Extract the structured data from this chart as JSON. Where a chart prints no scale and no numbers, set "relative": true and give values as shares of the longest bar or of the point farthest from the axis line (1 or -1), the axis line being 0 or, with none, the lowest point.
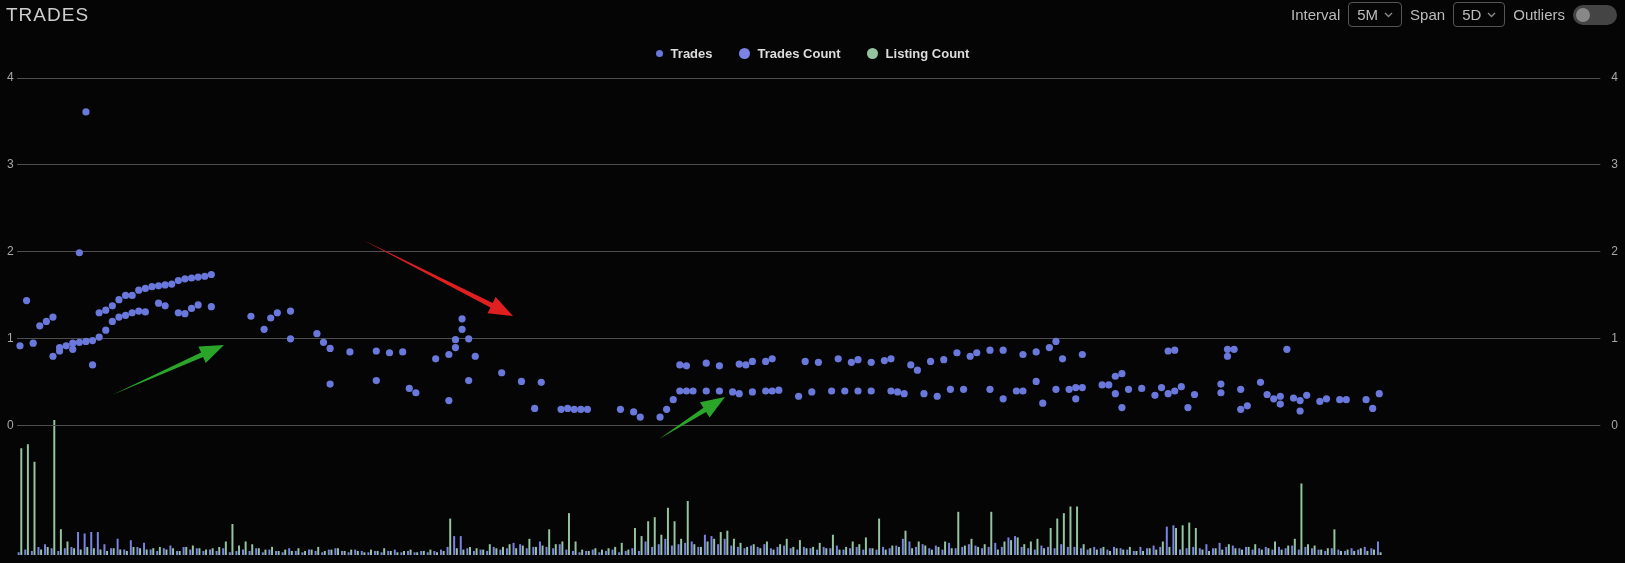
{
  "chart_data": [
    {
      "type": "scatter",
      "title": "TRADES",
      "annotations": [
        "Interval",
        "5M",
        "Span",
        "5D",
        "Outliers"
      ],
      "categories": [
        null,
        null,
        null,
        null,
        null,
        null,
        null,
        null,
        null,
        null,
        null,
        null,
        null,
        null,
        null,
        null,
        null,
        null,
        null,
        null,
        null,
        null,
        null,
        null,
        null,
        null,
        null,
        null,
        null,
        null,
        null,
        null,
        null,
        null,
        null,
        null,
        null,
        null,
        null,
        null,
        null,
        null,
        null,
        null,
        null,
        null,
        null,
        null,
        null,
        null,
        null,
        null,
        null,
        null,
        null,
        null,
        null,
        null,
        null,
        null,
        null,
        null,
        null,
        null,
        null,
        null,
        null,
        null,
        null,
        null,
        null,
        null,
        null,
        null,
        null,
        null,
        null,
        null,
        null,
        null,
        null,
        null,
        null,
        null,
        null,
        null,
        null,
        null,
        null,
        null,
        null,
        null,
        null,
        null,
        null,
        null,
        null,
        null,
        null,
        null,
        null,
        null,
        null,
        null,
        null,
        null,
        null,
        null,
        null,
        null,
        null,
        null,
        null,
        null,
        null,
        null,
        null,
        null,
        null,
        null,
        null,
        null,
        null,
        null,
        null,
        null,
        null,
        null,
        null,
        null,
        null,
        null,
        null,
        null,
        null,
        null,
        null,
        null,
        null,
        null,
        null,
        null,
        null,
        null,
        null,
        null,
        null,
        null,
        null,
        null,
        null,
        null,
        null,
        null,
        null,
        null,
        null,
        null,
        null,
        null,
        null,
        null,
        null,
        null,
        null,
        null,
        null,
        null,
        null,
        null,
        null,
        null,
        null,
        null,
        null,
        null,
        null,
        null,
        null,
        null,
        null,
        null,
        null,
        null,
        null,
        null,
        null,
        null,
        null,
        null,
        null,
        null,
        null,
        null,
        null,
        null,
        null,
        null,
        null,
        null,
        null,
        null,
        null,
        null,
        null,
        null,
        null,
        null,
        null,
        null,
        null,
        null,
        null,
        null,
        null,
        null,
        null,
        null,
        null,
        null,
        null,
        null,
        null,
        null,
        null,
        null,
        null,
        null,
        null,
        null,
        null,
        null,
        null,
        null,
        null,
        null,
        null,
        null,
        null,
        null
      ],
      "series": [
        {
          "name": "Trades",
          "color": "#6a78dc",
          "values": [
            0.92,
            1.44,
            0.95,
            1.15,
            1.2,
            0.8,
            0.86,
            0.92,
            0.95,
            0.96,
            3.61,
            0.7,
            1.3,
            1.33,
            1.38,
            1.45,
            1.5,
            1.5,
            1.56,
            1.58,
            1.6,
            1.61,
            1.62,
            1.63,
            1.67,
            1.69,
            1.7,
            1.71,
            1.72,
            1.74,
            null,
            null,
            null,
            null,
            null,
            1.26,
            null,
            1.11,
            1.24,
            1.3,
            null,
            1.0,
            null,
            null,
            null,
            1.06,
            0.96,
            0.89,
            null,
            null,
            0.85,
            null,
            null,
            null,
            0.86,
            null,
            0.84,
            null,
            0.85,
            0.43,
            0.38,
            null,
            null,
            0.77,
            null,
            0.29,
            0.9,
            1.23,
            1.0,
            0.8,
            null,
            null,
            null,
            0.61,
            null,
            null,
            0.51,
            null,
            0.2,
            0.5,
            null,
            null,
            0.19,
            0.2,
            0.19,
            0.19,
            0.19,
            null,
            null,
            null,
            null,
            0.19,
            null,
            0.16,
            0.1,
            null,
            null,
            0.1,
            0.19,
            0.3,
            0.4,
            0.4,
            0.4,
            null,
            0.72,
            null,
            0.69,
            null,
            0.39,
            0.71,
            0.7,
            0.39,
            null,
            0.74,
            0.4,
            0.41,
            null,
            null,
            0.34,
            0.74,
            0.39,
            0.73,
            null,
            0.4,
            0.77,
            0.4,
            0.73,
            0.4,
            null,
            0.4,
            null,
            0.75,
            0.4,
            0.39,
            0.37,
            0.7,
            0.64,
            0.37,
            0.74,
            0.34,
            0.76,
            0.42,
            0.84,
            0.42,
            0.8,
            0.84,
            null,
            0.42,
            null,
            0.87,
            null,
            0.4,
            0.82,
            null,
            0.51,
            0.26,
            0.9,
            0.97,
            0.77,
            0.42,
            0.44,
            0.82,
            null,
            null,
            0.47,
            0.47,
            0.37,
            0.6,
            0.42,
            null,
            0.43,
            null,
            0.35,
            0.44,
            0.86,
            0.87,
            0.45,
            0.21,
            0.36,
            null,
            null,
            null,
            0.38,
            0.8,
            0.88,
            0.19,
            0.23,
            null,
            0.5,
            0.36,
            0.31,
            0.34,
            0.88,
            0.32,
            0.17,
            0.35,
            null,
            0.28,
            0.31,
            null,
            0.3,
            0.3,
            null,
            null,
            0.3,
            0.2,
            0.37,
            null,
            null,
            null,
            null,
            null,
            null,
            null,
            null,
            null,
            null,
            null,
            null,
            null,
            null,
            null,
            null,
            null,
            null,
            null,
            null,
            null,
            null,
            null,
            null,
            null,
            null,
            null,
            null,
            null,
            null,
            null,
            null,
            null
          ]
        },
        {
          "color": "#6a78dc",
          "values": [
            null,
            null,
            null,
            null,
            null,
            1.25,
            0.9,
            null,
            0.88,
            1.99,
            0.97,
            0.98,
            1.02,
            1.1,
            1.2,
            1.25,
            1.27,
            1.3,
            1.32,
            1.31,
            null,
            1.41,
            1.38,
            null,
            1.3,
            1.29,
            1.35,
            1.39,
            null,
            1.37,
            null,
            null,
            null,
            null,
            null,
            null,
            null,
            null,
            null,
            null,
            null,
            1.32,
            null,
            null,
            null,
            null,
            null,
            0.48,
            null,
            null,
            null,
            null,
            null,
            null,
            0.52,
            null,
            null,
            null,
            null,
            null,
            null,
            null,
            null,
            null,
            null,
            0.82,
            0.99,
            1.11,
            0.52,
            null,
            null,
            null,
            null,
            null,
            null,
            null,
            null,
            null,
            null,
            null,
            null,
            null,
            null,
            null,
            null,
            null,
            null,
            null,
            null,
            null,
            null,
            null,
            null,
            null,
            null,
            null,
            null,
            null,
            null,
            null,
            0.7,
            0.69,
            null,
            null,
            0.4,
            null,
            0.4,
            null,
            null,
            0.37,
            null,
            0.74,
            null,
            0.4,
            0.77,
            null,
            null,
            null,
            null,
            null,
            null,
            null,
            null,
            null,
            null,
            null,
            null,
            0.76,
            null,
            0.73,
            null,
            null,
            0.77,
            null,
            null,
            null,
            null,
            null,
            null,
            null,
            null,
            null,
            null,
            null,
            null,
            null,
            null,
            0.87,
            null,
            0.31,
            null,
            null,
            0.4,
            null,
            0.85,
            null,
            null,
            0.42,
            null,
            null,
            0.31,
            0.44,
            null,
            null,
            null,
            null,
            0.57,
            0.21,
            null,
            null,
            null,
            null,
            null,
            null,
            0.37,
            0.4,
            null,
            null,
            null,
            null,
            null,
            null,
            0.48,
            0.88,
            null,
            0.42,
            null,
            null,
            null,
            null,
            null,
            0.25,
            null,
            null,
            0.29,
            null,
            null,
            null,
            null,
            null,
            null,
            null,
            null,
            null,
            null,
            null,
            null,
            null,
            null,
            null,
            null,
            null,
            null,
            null,
            null,
            null,
            null,
            null,
            null,
            null,
            null,
            null,
            null,
            null,
            null,
            null,
            null,
            null,
            null,
            null,
            null,
            null,
            null,
            null,
            null,
            null,
            null,
            null,
            null,
            null
          ]
        }
      ],
      "ylim": [
        0,
        4
      ],
      "yticks": [
        0,
        1,
        2,
        3,
        4
      ],
      "y2lim": [
        0,
        4
      ],
      "y2ticks": [
        0,
        1,
        2,
        3,
        4
      ],
      "grid": "y",
      "legend": "top",
      "marker": "circle",
      "tick_labels": "y"
    },
    {
      "type": "bar",
      "relative": true,
      "legend": "top",
      "tick_labels": false,
      "categories": [
        null,
        null,
        null,
        null,
        null,
        null,
        null,
        null,
        null,
        null,
        null,
        null,
        null,
        null,
        null,
        null,
        null,
        null,
        null,
        null,
        null,
        null,
        null,
        null,
        null,
        null,
        null,
        null,
        null,
        null,
        null,
        null,
        null,
        null,
        null,
        null,
        null,
        null,
        null,
        null,
        null,
        null,
        null,
        null,
        null,
        null,
        null,
        null,
        null,
        null,
        null,
        null,
        null,
        null,
        null,
        null,
        null,
        null,
        null,
        null,
        null,
        null,
        null,
        null,
        null,
        null,
        null,
        null,
        null,
        null,
        null,
        null,
        null,
        null,
        null,
        null,
        null,
        null,
        null,
        null,
        null,
        null,
        null,
        null,
        null,
        null,
        null,
        null,
        null,
        null,
        null,
        null,
        null,
        null,
        null,
        null,
        null,
        null,
        null,
        null,
        null,
        null,
        null,
        null,
        null,
        null,
        null,
        null,
        null,
        null,
        null,
        null,
        null,
        null,
        null,
        null,
        null,
        null,
        null,
        null,
        null,
        null,
        null,
        null,
        null,
        null,
        null,
        null,
        null,
        null,
        null,
        null,
        null,
        null,
        null,
        null,
        null,
        null,
        null,
        null,
        null,
        null,
        null,
        null,
        null,
        null,
        null,
        null,
        null,
        null,
        null,
        null,
        null,
        null,
        null,
        null,
        null,
        null,
        null,
        null,
        null,
        null,
        null,
        null,
        null,
        null,
        null,
        null,
        null,
        null,
        null,
        null,
        null,
        null,
        null,
        null,
        null,
        null,
        null,
        null,
        null,
        null,
        null,
        null,
        null,
        null,
        null,
        null,
        null,
        null,
        null,
        null,
        null,
        null,
        null,
        null,
        null,
        null,
        null,
        null,
        null,
        null,
        null,
        null,
        null,
        null,
        null,
        null,
        null,
        null,
        null,
        null,
        null,
        null,
        null,
        null,
        null,
        null,
        null,
        null,
        null,
        null,
        null,
        null,
        null,
        null,
        null,
        null,
        null,
        null,
        null,
        null,
        null,
        null,
        null,
        null,
        null,
        null,
        null,
        null
      ],
      "series": [
        {
          "name": "Trades Count",
          "color": "#7b83e6",
          "values": [
            0.02,
            0.04,
            0.03,
            0.06,
            0.08,
            0.05,
            0.03,
            0.05,
            0.06,
            0.17,
            0.16,
            0.17,
            0.17,
            0.08,
            0.05,
            0.12,
            0.04,
            0.11,
            0.06,
            0.09,
            0.04,
            0.03,
            0.05,
            0.07,
            0.03,
            0.06,
            0.04,
            0.05,
            0.03,
            0.04,
            0.03,
            0.05,
            0.02,
            0.03,
            0.04,
            0.03,
            0.05,
            0.02,
            0.04,
            0.03,
            0.02,
            0.05,
            0.03,
            0.02,
            0.04,
            0.03,
            0.02,
            0.04,
            0.05,
            0.03,
            0.02,
            0.04,
            0.03,
            0.02,
            0.03,
            0.02,
            0.03,
            0.04,
            0.02,
            0.03,
            0.02,
            0.03,
            0.02,
            0.03,
            0.04,
            0.06,
            0.14,
            0.14,
            0.05,
            0.03,
            0.04,
            0.03,
            0.06,
            0.04,
            0.05,
            0.09,
            0.08,
            0.05,
            0.06,
            0.1,
            0.06,
            0.05,
            0.08,
            0.04,
            0.03,
            0.02,
            0.03,
            0.04,
            0.02,
            0.03,
            0.04,
            0.02,
            0.03,
            0.05,
            0.03,
            0.1,
            0.06,
            0.08,
            0.12,
            0.07,
            0.08,
            0.09,
            0.1,
            0.06,
            0.15,
            0.14,
            0.08,
            0.12,
            0.07,
            0.06,
            0.05,
            0.07,
            0.06,
            0.08,
            0.05,
            0.06,
            0.07,
            0.05,
            0.04,
            0.06,
            0.05,
            0.04,
            0.06,
            0.05,
            0.07,
            0.04,
            0.05,
            0.06,
            0.04,
            0.05,
            0.04,
            0.06,
            0.05,
            0.07,
            0.12,
            0.1,
            0.06,
            0.08,
            0.05,
            0.07,
            0.04,
            0.09,
            0.05,
            0.06,
            0.08,
            0.07,
            0.05,
            0.06,
            0.09,
            0.06,
            0.13,
            0.14,
            0.06,
            0.05,
            0.04,
            0.07,
            0.06,
            0.05,
            0.08,
            0.06,
            0.06,
            0.05,
            0.04,
            0.06,
            0.05,
            0.04,
            0.06,
            0.05,
            0.04,
            0.03,
            0.06,
            0.05,
            0.07,
            0.06,
            0.21,
            0.22,
            0.04,
            0.05,
            0.06,
            0.05,
            0.08,
            0.05,
            0.09,
            0.06,
            0.07,
            0.05,
            0.06,
            0.04,
            0.05,
            0.06,
            0.04,
            0.06,
            0.05,
            0.07,
            0.04,
            0.06,
            0.05,
            0.04,
            0.03,
            0.05,
            0.04,
            0.03,
            0.05,
            0.04,
            0.06,
            0.05,
            0.1,
            null,
            null,
            null,
            null,
            null,
            null,
            null,
            null,
            null,
            null,
            null,
            null,
            null,
            null,
            null,
            null,
            null,
            null,
            null,
            null,
            null,
            null,
            null,
            null,
            null,
            null,
            null,
            null,
            null,
            null,
            null,
            null,
            null
          ]
        },
        {
          "name": "Listing Count",
          "color": "#94c4a0",
          "values": [
            0.79,
            0.82,
            0.69,
            0.04,
            0.06,
            1.0,
            0.19,
            0.1,
            0.05,
            0.04,
            0.06,
            0.05,
            0.04,
            0.03,
            0.05,
            0.04,
            0.03,
            0.06,
            0.05,
            0.04,
            0.05,
            0.06,
            0.04,
            0.05,
            0.03,
            0.06,
            0.07,
            0.05,
            0.04,
            0.05,
            0.06,
            0.1,
            0.23,
            0.07,
            0.1,
            0.08,
            0.05,
            0.04,
            0.06,
            0.03,
            0.04,
            0.03,
            0.05,
            0.03,
            0.04,
            0.06,
            0.03,
            0.04,
            0.05,
            0.03,
            0.04,
            0.03,
            0.02,
            0.04,
            0.03,
            0.05,
            0.03,
            0.02,
            0.03,
            0.04,
            0.02,
            0.03,
            0.04,
            0.02,
            0.03,
            0.27,
            0.05,
            0.04,
            0.06,
            0.05,
            0.04,
            0.08,
            0.05,
            0.06,
            0.08,
            0.05,
            0.07,
            0.12,
            0.06,
            0.07,
            0.19,
            0.08,
            0.1,
            0.31,
            0.1,
            0.04,
            0.03,
            0.05,
            0.04,
            0.05,
            0.06,
            0.09,
            0.04,
            0.2,
            0.14,
            0.25,
            0.28,
            0.15,
            0.35,
            0.25,
            0.12,
            0.4,
            0.08,
            0.06,
            0.1,
            0.12,
            0.17,
            0.18,
            0.12,
            0.09,
            0.06,
            0.08,
            0.05,
            0.1,
            0.04,
            0.08,
            0.12,
            0.06,
            0.11,
            0.05,
            0.06,
            0.09,
            0.05,
            0.15,
            0.04,
            0.06,
            0.1,
            0.08,
            0.13,
            0.05,
            0.27,
            0.04,
            0.07,
            0.06,
            0.18,
            0.05,
            0.1,
            0.07,
            0.04,
            0.06,
            0.1,
            0.05,
            0.32,
            0.07,
            0.12,
            0.06,
            0.08,
            0.32,
            0.04,
            0.1,
            0.11,
            0.13,
            0.08,
            0.1,
            0.12,
            0.05,
            0.2,
            0.27,
            0.31,
            0.36,
            0.36,
            0.08,
            0.05,
            0.04,
            0.06,
            0.03,
            0.05,
            0.04,
            0.06,
            0.03,
            0.03,
            0.05,
            0.04,
            0.1,
            0.06,
            0.2,
            0.22,
            0.24,
            0.2,
            0.04,
            0.03,
            0.05,
            0.04,
            0.08,
            0.05,
            0.04,
            0.06,
            0.08,
            0.04,
            0.05,
            0.1,
            0.04,
            0.07,
            0.12,
            0.53,
            0.08,
            0.07,
            0.04,
            0.05,
            0.19,
            0.03,
            0.04,
            0.03,
            0.05,
            0.03,
            0.04,
            0.02,
            null,
            null,
            null,
            null,
            null,
            null,
            null,
            null,
            null,
            null,
            null,
            null,
            null,
            null,
            null,
            null,
            null,
            null,
            null,
            null,
            null,
            null,
            null,
            null,
            null,
            null,
            null,
            null,
            null,
            null,
            null,
            null,
            null
          ]
        }
      ]
    }
  ]
}
